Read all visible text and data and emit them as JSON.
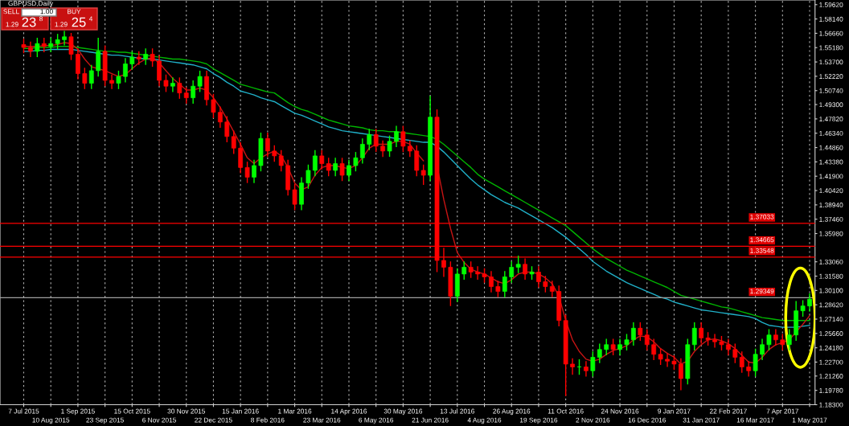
{
  "chart_data": {
    "type": "candlestick",
    "title": "GBPUSD,Daily",
    "categories": [
      "7 Jul 2015",
      null,
      null,
      null,
      "10 Aug 2015",
      null,
      null,
      null,
      "1 Sep 2015",
      null,
      null,
      null,
      "23 Sep 2015",
      null,
      null,
      null,
      "15 Oct 2015",
      null,
      null,
      null,
      "6 Nov 2015",
      null,
      null,
      null,
      "30 Nov 2015",
      null,
      null,
      null,
      "22 Dec 2015",
      null,
      null,
      null,
      "15 Jan 2016",
      null,
      null,
      null,
      "8 Feb 2016",
      null,
      null,
      null,
      "1 Mar 2016",
      null,
      null,
      null,
      "23 Mar 2016",
      null,
      null,
      null,
      "14 Apr 2016",
      null,
      null,
      null,
      "6 May 2016",
      null,
      null,
      null,
      "30 May 2016",
      null,
      null,
      null,
      "21 Jun 2016",
      null,
      null,
      null,
      "13 Jul 2016",
      null,
      null,
      null,
      "4 Aug 2016",
      null,
      null,
      null,
      "26 Aug 2016",
      null,
      null,
      null,
      "19 Sep 2016",
      null,
      null,
      null,
      "11 Oct 2016",
      null,
      null,
      null,
      "2 Nov 2016",
      null,
      null,
      null,
      "24 Nov 2016",
      null,
      null,
      null,
      "16 Dec 2016",
      null,
      null,
      null,
      "9 Jan 2017",
      null,
      null,
      null,
      "31 Jan 2017",
      null,
      null,
      null,
      "22 Feb 2017",
      null,
      null,
      null,
      "16 Mar 2017",
      null,
      null,
      null,
      "7 Apr 2017",
      null,
      null,
      null,
      "1 May 2017"
    ],
    "ohlc": [
      [
        1.555,
        1.561,
        1.546,
        1.552
      ],
      [
        1.552,
        1.558,
        1.542,
        1.548
      ],
      [
        1.548,
        1.562,
        1.542,
        1.556
      ],
      [
        1.556,
        1.562,
        1.547,
        1.553
      ],
      [
        1.553,
        1.562,
        1.547,
        1.556
      ],
      [
        1.556,
        1.566,
        1.55,
        1.56
      ],
      [
        1.56,
        1.569,
        1.554,
        1.563
      ],
      [
        1.563,
        1.567,
        1.539,
        1.545
      ],
      [
        1.545,
        1.551,
        1.519,
        1.525
      ],
      [
        1.525,
        1.531,
        1.509,
        1.515
      ],
      [
        1.515,
        1.534,
        1.509,
        1.528
      ],
      [
        1.528,
        1.562,
        1.522,
        1.548
      ],
      [
        1.548,
        1.554,
        1.512,
        1.518
      ],
      [
        1.518,
        1.524,
        1.509,
        1.515
      ],
      [
        1.515,
        1.528,
        1.509,
        1.522
      ],
      [
        1.522,
        1.541,
        1.516,
        1.535
      ],
      [
        1.535,
        1.548,
        1.529,
        1.542
      ],
      [
        1.542,
        1.548,
        1.534,
        1.54
      ],
      [
        1.54,
        1.551,
        1.534,
        1.545
      ],
      [
        1.545,
        1.551,
        1.532,
        1.538
      ],
      [
        1.538,
        1.544,
        1.512,
        1.518
      ],
      [
        1.518,
        1.524,
        1.506,
        1.512
      ],
      [
        1.512,
        1.521,
        1.506,
        1.515
      ],
      [
        1.515,
        1.521,
        1.499,
        1.505
      ],
      [
        1.505,
        1.511,
        1.494,
        1.5
      ],
      [
        1.5,
        1.518,
        1.494,
        1.512
      ],
      [
        1.512,
        1.528,
        1.506,
        1.522
      ],
      [
        1.522,
        1.528,
        1.492,
        1.498
      ],
      [
        1.498,
        1.504,
        1.479,
        1.485
      ],
      [
        1.485,
        1.491,
        1.469,
        1.475
      ],
      [
        1.475,
        1.481,
        1.454,
        1.46
      ],
      [
        1.46,
        1.466,
        1.442,
        1.448
      ],
      [
        1.448,
        1.454,
        1.422,
        1.428
      ],
      [
        1.428,
        1.434,
        1.412,
        1.418
      ],
      [
        1.418,
        1.436,
        1.412,
        1.43
      ],
      [
        1.43,
        1.464,
        1.424,
        1.458
      ],
      [
        1.458,
        1.464,
        1.439,
        1.445
      ],
      [
        1.445,
        1.451,
        1.434,
        1.44
      ],
      [
        1.44,
        1.446,
        1.424,
        1.43
      ],
      [
        1.43,
        1.436,
        1.399,
        1.405
      ],
      [
        1.405,
        1.411,
        1.384,
        1.39
      ],
      [
        1.39,
        1.418,
        1.384,
        1.412
      ],
      [
        1.412,
        1.431,
        1.406,
        1.425
      ],
      [
        1.425,
        1.446,
        1.419,
        1.44
      ],
      [
        1.44,
        1.446,
        1.426,
        1.432
      ],
      [
        1.432,
        1.438,
        1.419,
        1.425
      ],
      [
        1.425,
        1.438,
        1.419,
        1.432
      ],
      [
        1.432,
        1.438,
        1.414,
        1.42
      ],
      [
        1.42,
        1.436,
        1.414,
        1.43
      ],
      [
        1.43,
        1.444,
        1.424,
        1.438
      ],
      [
        1.438,
        1.458,
        1.432,
        1.452
      ],
      [
        1.452,
        1.468,
        1.446,
        1.462
      ],
      [
        1.462,
        1.468,
        1.444,
        1.45
      ],
      [
        1.45,
        1.456,
        1.439,
        1.445
      ],
      [
        1.445,
        1.461,
        1.439,
        1.455
      ],
      [
        1.455,
        1.471,
        1.449,
        1.465
      ],
      [
        1.465,
        1.471,
        1.444,
        1.45
      ],
      [
        1.45,
        1.456,
        1.439,
        1.445
      ],
      [
        1.445,
        1.451,
        1.419,
        1.425
      ],
      [
        1.425,
        1.431,
        1.41,
        1.42
      ],
      [
        1.42,
        1.502,
        1.414,
        1.48
      ],
      [
        1.48,
        1.488,
        1.32,
        1.332
      ],
      [
        1.332,
        1.345,
        1.315,
        1.325
      ],
      [
        1.325,
        1.331,
        1.285,
        1.295
      ],
      [
        1.295,
        1.324,
        1.289,
        1.318
      ],
      [
        1.318,
        1.331,
        1.312,
        1.325
      ],
      [
        1.325,
        1.331,
        1.314,
        1.32
      ],
      [
        1.32,
        1.326,
        1.312,
        1.318
      ],
      [
        1.318,
        1.324,
        1.309,
        1.315
      ],
      [
        1.315,
        1.321,
        1.299,
        1.305
      ],
      [
        1.305,
        1.311,
        1.294,
        1.3
      ],
      [
        1.3,
        1.321,
        1.294,
        1.315
      ],
      [
        1.315,
        1.331,
        1.309,
        1.325
      ],
      [
        1.325,
        1.337,
        1.319,
        1.328
      ],
      [
        1.328,
        1.334,
        1.312,
        1.318
      ],
      [
        1.318,
        1.326,
        1.312,
        1.32
      ],
      [
        1.32,
        1.326,
        1.304,
        1.31
      ],
      [
        1.31,
        1.316,
        1.299,
        1.305
      ],
      [
        1.305,
        1.311,
        1.294,
        1.3
      ],
      [
        1.3,
        1.306,
        1.264,
        1.27
      ],
      [
        1.27,
        1.276,
        1.192,
        1.225
      ],
      [
        1.225,
        1.231,
        1.214,
        1.222
      ],
      [
        1.222,
        1.23,
        1.214,
        1.222
      ],
      [
        1.222,
        1.228,
        1.212,
        1.218
      ],
      [
        1.218,
        1.238,
        1.212,
        1.232
      ],
      [
        1.232,
        1.246,
        1.226,
        1.24
      ],
      [
        1.24,
        1.251,
        1.234,
        1.245
      ],
      [
        1.245,
        1.251,
        1.234,
        1.24
      ],
      [
        1.24,
        1.251,
        1.234,
        1.245
      ],
      [
        1.245,
        1.256,
        1.239,
        1.25
      ],
      [
        1.25,
        1.268,
        1.244,
        1.262
      ],
      [
        1.262,
        1.268,
        1.249,
        1.255
      ],
      [
        1.255,
        1.261,
        1.239,
        1.245
      ],
      [
        1.245,
        1.251,
        1.229,
        1.235
      ],
      [
        1.235,
        1.241,
        1.224,
        1.23
      ],
      [
        1.23,
        1.236,
        1.222,
        1.228
      ],
      [
        1.228,
        1.234,
        1.219,
        1.225
      ],
      [
        1.225,
        1.231,
        1.198,
        1.21
      ],
      [
        1.21,
        1.251,
        1.204,
        1.245
      ],
      [
        1.245,
        1.268,
        1.239,
        1.262
      ],
      [
        1.262,
        1.268,
        1.246,
        1.252
      ],
      [
        1.252,
        1.258,
        1.244,
        1.25
      ],
      [
        1.25,
        1.256,
        1.242,
        1.248
      ],
      [
        1.248,
        1.254,
        1.239,
        1.245
      ],
      [
        1.245,
        1.251,
        1.234,
        1.24
      ],
      [
        1.24,
        1.246,
        1.226,
        1.232
      ],
      [
        1.232,
        1.238,
        1.216,
        1.222
      ],
      [
        1.222,
        1.228,
        1.212,
        1.218
      ],
      [
        1.218,
        1.241,
        1.212,
        1.235
      ],
      [
        1.235,
        1.251,
        1.229,
        1.245
      ],
      [
        1.245,
        1.261,
        1.239,
        1.255
      ],
      [
        1.255,
        1.261,
        1.244,
        1.25
      ],
      [
        1.25,
        1.256,
        1.239,
        1.245
      ],
      [
        1.245,
        1.261,
        1.239,
        1.255
      ],
      [
        1.255,
        1.29,
        1.249,
        1.28
      ],
      [
        1.28,
        1.291,
        1.274,
        1.285
      ],
      [
        1.285,
        1.298,
        1.279,
        1.292
      ]
    ],
    "series": [
      {
        "type": "line",
        "color": "#00b400",
        "values": [
          1.551,
          1.551,
          1.552,
          1.552,
          1.552,
          1.553,
          1.553,
          1.553,
          1.552,
          1.551,
          1.55,
          1.549,
          1.548,
          1.548,
          1.547,
          1.547,
          1.546,
          1.545,
          1.544,
          1.543,
          1.542,
          1.541,
          1.54,
          1.54,
          1.539,
          1.538,
          1.537,
          1.535,
          1.53,
          1.526,
          1.522,
          1.518,
          1.514,
          1.512,
          1.51,
          1.508,
          1.506,
          1.505,
          1.5,
          1.495,
          1.491,
          1.488,
          1.486,
          1.483,
          1.48,
          1.477,
          1.475,
          1.473,
          1.471,
          1.47,
          1.469,
          1.467,
          1.466,
          1.466,
          1.465,
          1.465,
          1.464,
          1.463,
          1.462,
          1.461,
          1.46,
          1.457,
          1.452,
          1.446,
          1.44,
          1.434,
          1.428,
          1.421,
          1.416,
          1.412,
          1.408,
          1.404,
          1.4,
          1.396,
          1.392,
          1.388,
          1.384,
          1.38,
          1.376,
          1.372,
          1.368,
          1.362,
          1.356,
          1.35,
          1.344,
          1.339,
          1.334,
          1.33,
          1.326,
          1.322,
          1.319,
          1.316,
          1.313,
          1.31,
          1.307,
          1.304,
          1.3,
          1.296,
          1.294,
          1.292,
          1.29,
          1.288,
          1.286,
          1.284,
          1.283,
          1.281,
          1.279,
          1.277,
          1.275,
          1.273,
          1.272,
          1.271,
          1.27,
          1.27,
          1.27,
          1.27,
          1.27
        ]
      },
      {
        "type": "line",
        "color": "#20b0c8",
        "values": [
          1.548,
          1.548,
          1.549,
          1.549,
          1.55,
          1.55,
          1.55,
          1.55,
          1.549,
          1.548,
          1.547,
          1.546,
          1.545,
          1.544,
          1.544,
          1.543,
          1.542,
          1.541,
          1.54,
          1.54,
          1.539,
          1.538,
          1.537,
          1.536,
          1.535,
          1.534,
          1.532,
          1.53,
          1.525,
          1.521,
          1.516,
          1.512,
          1.507,
          1.505,
          1.503,
          1.5,
          1.498,
          1.496,
          1.492,
          1.488,
          1.484,
          1.482,
          1.479,
          1.476,
          1.473,
          1.47,
          1.468,
          1.466,
          1.465,
          1.464,
          1.463,
          1.462,
          1.461,
          1.46,
          1.459,
          1.458,
          1.457,
          1.456,
          1.455,
          1.454,
          1.454,
          1.45,
          1.444,
          1.437,
          1.43,
          1.423,
          1.416,
          1.41,
          1.405,
          1.4,
          1.396,
          1.392,
          1.389,
          1.386,
          1.382,
          1.378,
          1.374,
          1.37,
          1.366,
          1.361,
          1.356,
          1.35,
          1.344,
          1.338,
          1.331,
          1.326,
          1.321,
          1.317,
          1.313,
          1.309,
          1.306,
          1.303,
          1.3,
          1.297,
          1.294,
          1.292,
          1.289,
          1.287,
          1.285,
          1.283,
          1.281,
          1.28,
          1.279,
          1.278,
          1.277,
          1.276,
          1.275,
          1.274,
          1.272,
          1.268,
          1.265,
          1.264,
          1.263,
          1.263,
          1.263,
          1.264,
          1.265
        ]
      },
      {
        "type": "line",
        "color": "#c81414",
        "values": [
          1.553,
          1.553,
          1.553,
          1.554,
          1.554,
          1.555,
          1.557,
          1.556,
          1.55,
          1.54,
          1.532,
          1.53,
          1.528,
          1.525,
          1.522,
          1.524,
          1.53,
          1.536,
          1.54,
          1.541,
          1.536,
          1.528,
          1.52,
          1.514,
          1.508,
          1.508,
          1.51,
          1.508,
          1.5,
          1.49,
          1.478,
          1.465,
          1.452,
          1.438,
          1.432,
          1.438,
          1.442,
          1.445,
          1.44,
          1.428,
          1.412,
          1.405,
          1.408,
          1.42,
          1.428,
          1.43,
          1.43,
          1.428,
          1.427,
          1.43,
          1.438,
          1.448,
          1.452,
          1.452,
          1.452,
          1.455,
          1.455,
          1.452,
          1.443,
          1.435,
          null,
          1.43,
          1.395,
          1.365,
          1.34,
          1.33,
          1.323,
          1.32,
          1.318,
          1.314,
          1.31,
          1.308,
          1.312,
          1.318,
          1.32,
          1.32,
          1.318,
          1.314,
          1.308,
          1.295,
          1.27,
          1.25,
          1.238,
          1.23,
          1.228,
          1.23,
          1.235,
          1.239,
          1.241,
          1.244,
          1.25,
          1.254,
          1.253,
          1.248,
          1.241,
          1.236,
          1.232,
          1.225,
          1.228,
          1.238,
          1.245,
          1.25,
          1.251,
          1.249,
          1.246,
          1.241,
          1.234,
          1.227,
          1.226,
          1.232,
          1.24,
          1.245,
          1.247,
          1.25,
          1.258,
          1.266,
          1.275
        ]
      }
    ],
    "ylim": [
      1.183,
      1.601
    ],
    "yticks": [
      {
        "value": 1.5962,
        "label": "1.59620"
      },
      {
        "value": 1.5814,
        "label": "1.58140"
      },
      {
        "value": 1.5666,
        "label": "1.56660"
      },
      {
        "value": 1.5518,
        "label": "1.55180"
      },
      {
        "value": 1.537,
        "label": "1.53700"
      },
      {
        "value": 1.5222,
        "label": "1.52220"
      },
      {
        "value": 1.5074,
        "label": "1.50740"
      },
      {
        "value": 1.493,
        "label": "1.49300"
      },
      {
        "value": 1.4782,
        "label": "1.47820"
      },
      {
        "value": 1.4634,
        "label": "1.46340"
      },
      {
        "value": 1.4486,
        "label": "1.44860"
      },
      {
        "value": 1.4338,
        "label": "1.43380"
      },
      {
        "value": 1.419,
        "label": "1.41900"
      },
      {
        "value": 1.4042,
        "label": "1.40420"
      },
      {
        "value": 1.3894,
        "label": "1.38940"
      },
      {
        "value": 1.3746,
        "label": "1.37460"
      },
      {
        "value": 1.3598,
        "label": "1.35980"
      },
      {
        "value": 1.3306,
        "label": "1.33060"
      },
      {
        "value": 1.3158,
        "label": "1.31580"
      },
      {
        "value": 1.301,
        "label": "1.30100"
      },
      {
        "value": 1.2862,
        "label": "1.28620"
      },
      {
        "value": 1.2714,
        "label": "1.27140"
      },
      {
        "value": 1.2566,
        "label": "1.25660"
      },
      {
        "value": 1.2418,
        "label": "1.24180"
      },
      {
        "value": 1.227,
        "label": "1.22700"
      },
      {
        "value": 1.2126,
        "label": "1.21260"
      },
      {
        "value": 1.1978,
        "label": "1.19780"
      },
      {
        "value": 1.183,
        "label": "1.18300"
      }
    ],
    "ref_lines": [
      {
        "axis": "y",
        "value": 1.37033,
        "label": "1.37033",
        "color": "#ff0000"
      },
      {
        "axis": "y",
        "value": 1.34665,
        "label": "1.34665",
        "color": "#ff0000"
      },
      {
        "axis": "y",
        "value": 1.33548,
        "label": "1.33548",
        "color": "#ff0000"
      },
      {
        "axis": "y",
        "value": 1.29349,
        "label": "1.29349",
        "color": "#a0a0a0"
      }
    ],
    "grid": "x",
    "annotations": [
      "SELL",
      "1.00",
      "BUY",
      "1.29",
      "23",
      "8",
      "1.29",
      "25",
      "4"
    ]
  }
}
